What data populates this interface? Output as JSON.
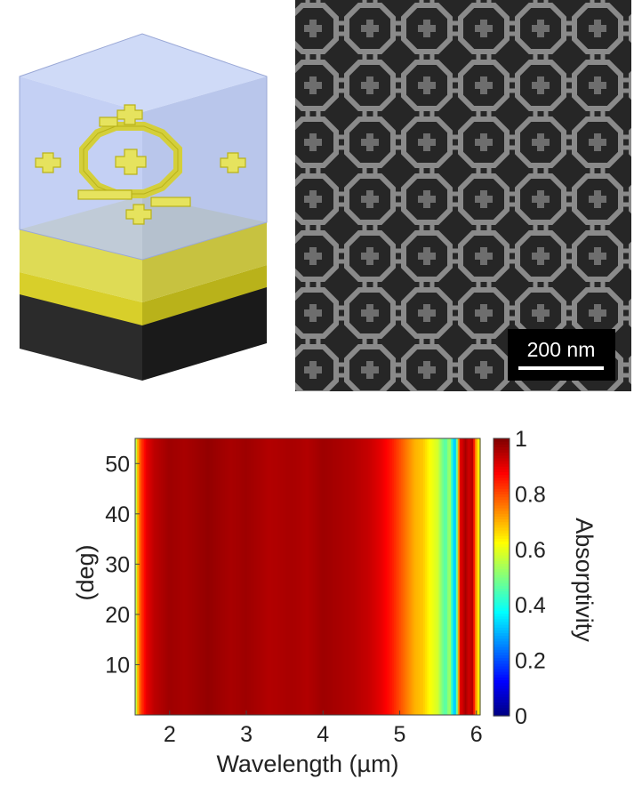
{
  "colors": {
    "glass": "#b7c6f2",
    "gold": "#e6e35e",
    "gold_dark": "#b9b21a",
    "substrate": "#2b2b2b",
    "sem_background": "#262626",
    "sem_pattern": "#8a8a8a"
  },
  "model_3d": {
    "icon": "unit-cell-3d-model"
  },
  "sem": {
    "icon": "sem-micrograph",
    "scale_bar_label": "200 nm"
  },
  "chart_data": {
    "type": "heatmap",
    "title": "",
    "xlabel": "Wavelength (µm)",
    "ylabel": "(deg)",
    "colorbar_label": "Absorptivity",
    "xlim": [
      1.55,
      6.05
    ],
    "ylim": [
      0,
      55
    ],
    "clim": [
      0,
      1
    ],
    "xticks": [
      2,
      3,
      4,
      5,
      6
    ],
    "yticks": [
      10,
      20,
      30,
      40,
      50
    ],
    "cticks": [
      0,
      0.2,
      0.4,
      0.6,
      0.8,
      1
    ],
    "colormap": "jet",
    "angle_dependence": "nearly none (absorptivity constant along the angle axis)",
    "absorptivity_vs_wavelength": {
      "wavelength": [
        1.55,
        1.57,
        1.62,
        1.7,
        1.8,
        2.0,
        2.2,
        2.5,
        2.8,
        3.0,
        3.3,
        3.6,
        3.8,
        4.0,
        4.2,
        4.4,
        4.6,
        4.75,
        4.9,
        5.0,
        5.1,
        5.2,
        5.3,
        5.4,
        5.5,
        5.55,
        5.6,
        5.65,
        5.7,
        5.72,
        5.75,
        5.78,
        5.8,
        5.82,
        5.85,
        5.9,
        5.95,
        6.0,
        6.05
      ],
      "absorptivity": [
        0.45,
        0.65,
        0.8,
        0.9,
        0.94,
        0.97,
        0.96,
        0.98,
        0.96,
        0.97,
        0.95,
        0.96,
        0.95,
        0.97,
        0.96,
        0.95,
        0.93,
        0.9,
        0.85,
        0.8,
        0.75,
        0.7,
        0.68,
        0.62,
        0.58,
        0.5,
        0.45,
        0.55,
        0.35,
        0.3,
        0.5,
        0.85,
        0.95,
        0.9,
        0.97,
        0.92,
        0.95,
        0.7,
        0.6
      ]
    }
  }
}
